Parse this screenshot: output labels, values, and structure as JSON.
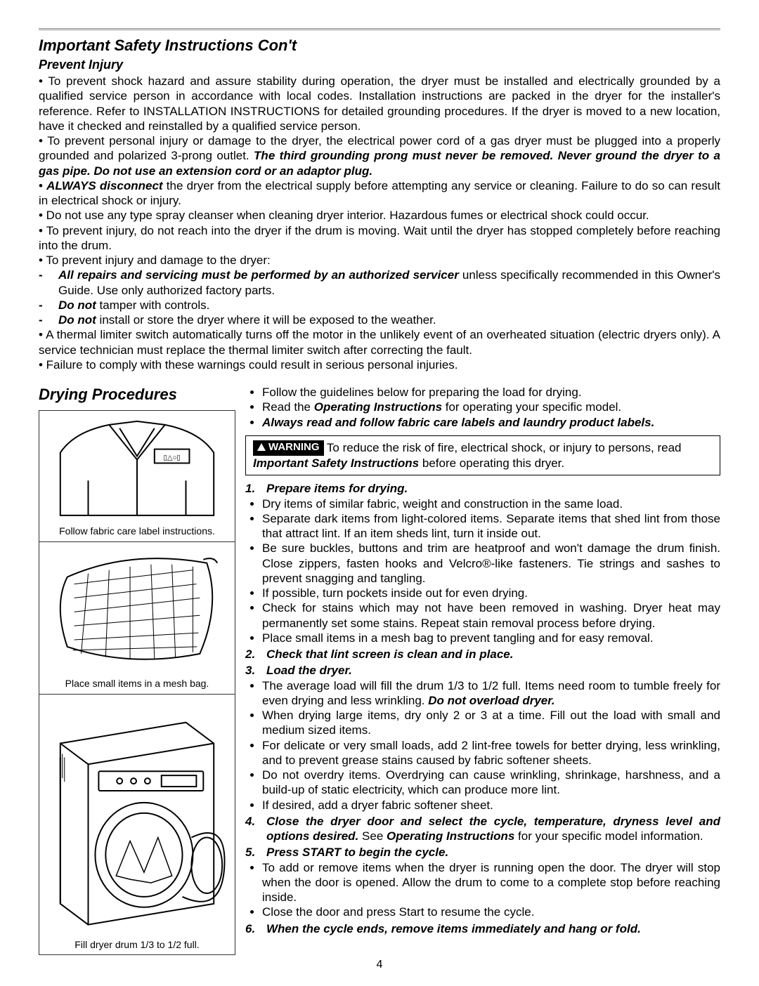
{
  "page_number": "4",
  "top": {
    "title": "Important Safety Instructions Con't",
    "subtitle": "Prevent Injury",
    "p1_a": "• To prevent shock hazard and assure stability during operation, the dryer must be installed and electrically grounded by a qualified service person in accordance with local codes. Installation instructions are packed in the dryer for the installer's reference. Refer to INSTALLATION INSTRUCTIONS for detailed grounding procedures. If the dryer is moved to a new location, have it checked and reinstalled by a qualified service person.",
    "p2_a": "• To prevent personal injury or damage to the dryer, the electrical power cord of a gas dryer must be plugged into a properly grounded and polarized 3-prong outlet. ",
    "p2_b": "The third grounding prong must never be removed. Never ground the dryer to a gas pipe. Do not use an extension cord or an adaptor plug.",
    "p3_a": "• ",
    "p3_b": "ALWAYS disconnect",
    "p3_c": " the dryer from the electrical supply before attempting any service or cleaning. Failure to do so can result in electrical shock or injury.",
    "p4": "• Do not use any type spray cleanser when cleaning dryer interior. Hazardous fumes or electrical shock could occur.",
    "p5": "• To prevent injury, do not reach into the dryer if the drum is moving. Wait until the dryer has stopped completely before reaching into the drum.",
    "p6": "• To prevent injury and damage to the dryer:",
    "d1_a": "All repairs and servicing must be performed by an authorized servicer",
    "d1_b": " unless specifically recommended in this Owner's Guide. Use only authorized factory parts.",
    "d2_a": "Do not",
    "d2_b": " tamper with controls.",
    "d3_a": "Do not",
    "d3_b": " install or store the dryer where it will be exposed to the weather.",
    "p7": "• A thermal limiter switch automatically turns off the motor in the unlikely event of an overheated situation (electric dryers only). A service technician must replace the thermal limiter switch after correcting the fault.",
    "p8": "• Failure to comply with these warnings could result in serious personal injuries."
  },
  "left": {
    "heading": "Drying Procedures",
    "cap1": "Follow fabric care label instructions.",
    "cap2": "Place small items in a mesh bag.",
    "cap3": "Fill dryer drum 1/3 to 1/2 full."
  },
  "right": {
    "intro1": "Follow the guidelines below for preparing the load for drying.",
    "intro2_a": "Read the ",
    "intro2_b": "Operating Instructions",
    "intro2_c": " for operating your specific model.",
    "intro3": "Always read and follow fabric care labels and laundry product labels.",
    "warn_label": "WARNING",
    "warn_a": "To reduce the risk of fire, electrical shock, or injury to persons, read ",
    "warn_b": "Important Safety Instructions",
    "warn_c": " before operating this dryer.",
    "s1_num": "1.",
    "s1_ttl": "Prepare items for drying.",
    "s1_items": [
      "Dry items of similar fabric, weight and construction in the same load.",
      "Separate dark items from light-colored items. Separate items that shed lint from those that attract lint. If an item sheds lint, turn it inside out.",
      "Be sure buckles, buttons and trim are heatproof and won't damage the drum finish. Close zippers, fasten hooks and Velcro®-like fasteners. Tie strings and sashes to prevent snagging and tangling.",
      "If possible, turn pockets inside out for even drying.",
      "Check for stains which may not have been removed in washing. Dryer heat may permanently set some stains. Repeat stain removal process before drying.",
      "Place small items in a mesh bag to prevent tangling and for easy removal."
    ],
    "s2_num": "2.",
    "s2_ttl": "Check that lint screen is clean and in place.",
    "s3_num": "3.",
    "s3_ttl": "Load the dryer.",
    "s3_i1_a": "The average load will fill the drum 1/3 to 1/2 full. Items need room to tumble freely for even drying and less wrinkling. ",
    "s3_i1_b": "Do not overload dryer.",
    "s3_items_rest": [
      "When drying large items, dry only 2 or 3 at a time. Fill out the load with small and medium sized items.",
      "For delicate or very small loads, add 2 lint-free towels for better drying, less wrinkling, and to prevent grease stains caused by fabric softener sheets.",
      "Do not overdry items. Overdrying can cause wrinkling, shrinkage, harshness, and a build-up of static electricity, which can produce more lint.",
      "If desired, add a dryer fabric softener sheet."
    ],
    "s4_num": "4.",
    "s4_a": "Close the dryer door and select the cycle, temperature, dryness level and options desired.",
    "s4_b": "  See ",
    "s4_c": "Operating Instructions",
    "s4_d": " for your specific model information.",
    "s5_num": "5.",
    "s5_ttl": "Press START to begin the cycle.",
    "s5_items": [
      "To add or remove items when the dryer is running open the door.  The dryer will stop when the door is opened.  Allow the drum to come to a complete stop before reaching inside.",
      "Close the door and press Start to resume the cycle."
    ],
    "s6_num": "6.",
    "s6_ttl": "When the cycle ends, remove items immediately and hang or fold."
  }
}
